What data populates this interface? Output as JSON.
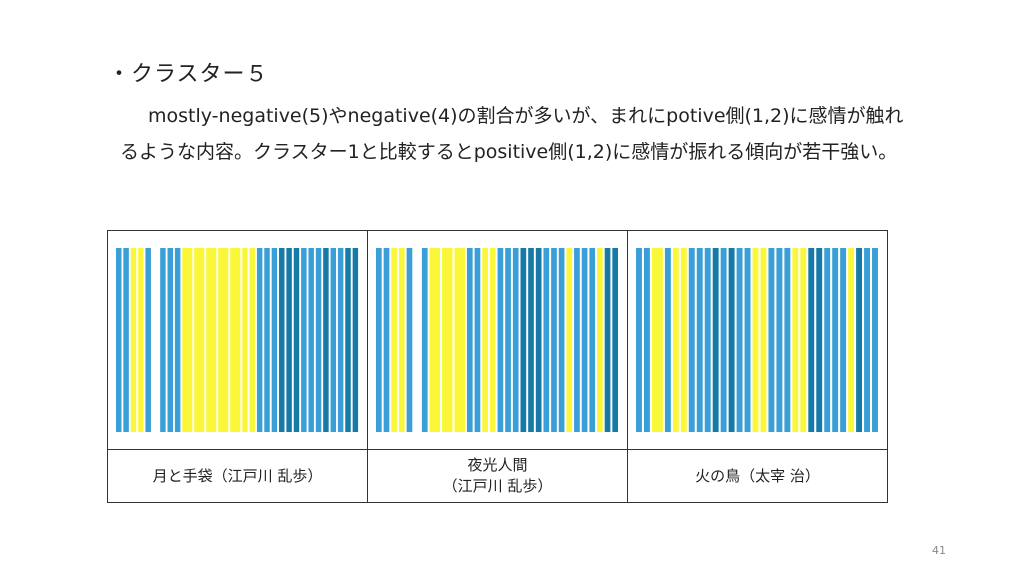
{
  "slide": {
    "bullet": "・クラスター５",
    "paragraph": "mostly-negative(5)やnegative(4)の割合が多いが、まれにpotive側(1,2)に感情が触れるような内容。クラスター1と比較するとpositive側(1,2)に感情が振れる傾向が若干強い。",
    "page_number": "41"
  },
  "table": {
    "captions": [
      "月と手袋（江戸川 乱歩）",
      "夜光人間\n（江戸川 乱歩）",
      "火の鳥（太宰 治）"
    ]
  },
  "colors": {
    "yellow": "#faf73a",
    "light_blue": "#3a9fd6",
    "dark_teal": "#1779a6"
  },
  "barcodes": [
    "bbyybwbbbYYYYYyybbbtttbbbtbbtt",
    "bbyybwbYYYbbyybbbtttbbbybbbytt",
    "bbYbyybbbtbtbbyybbbyyttbbbytbb"
  ]
}
